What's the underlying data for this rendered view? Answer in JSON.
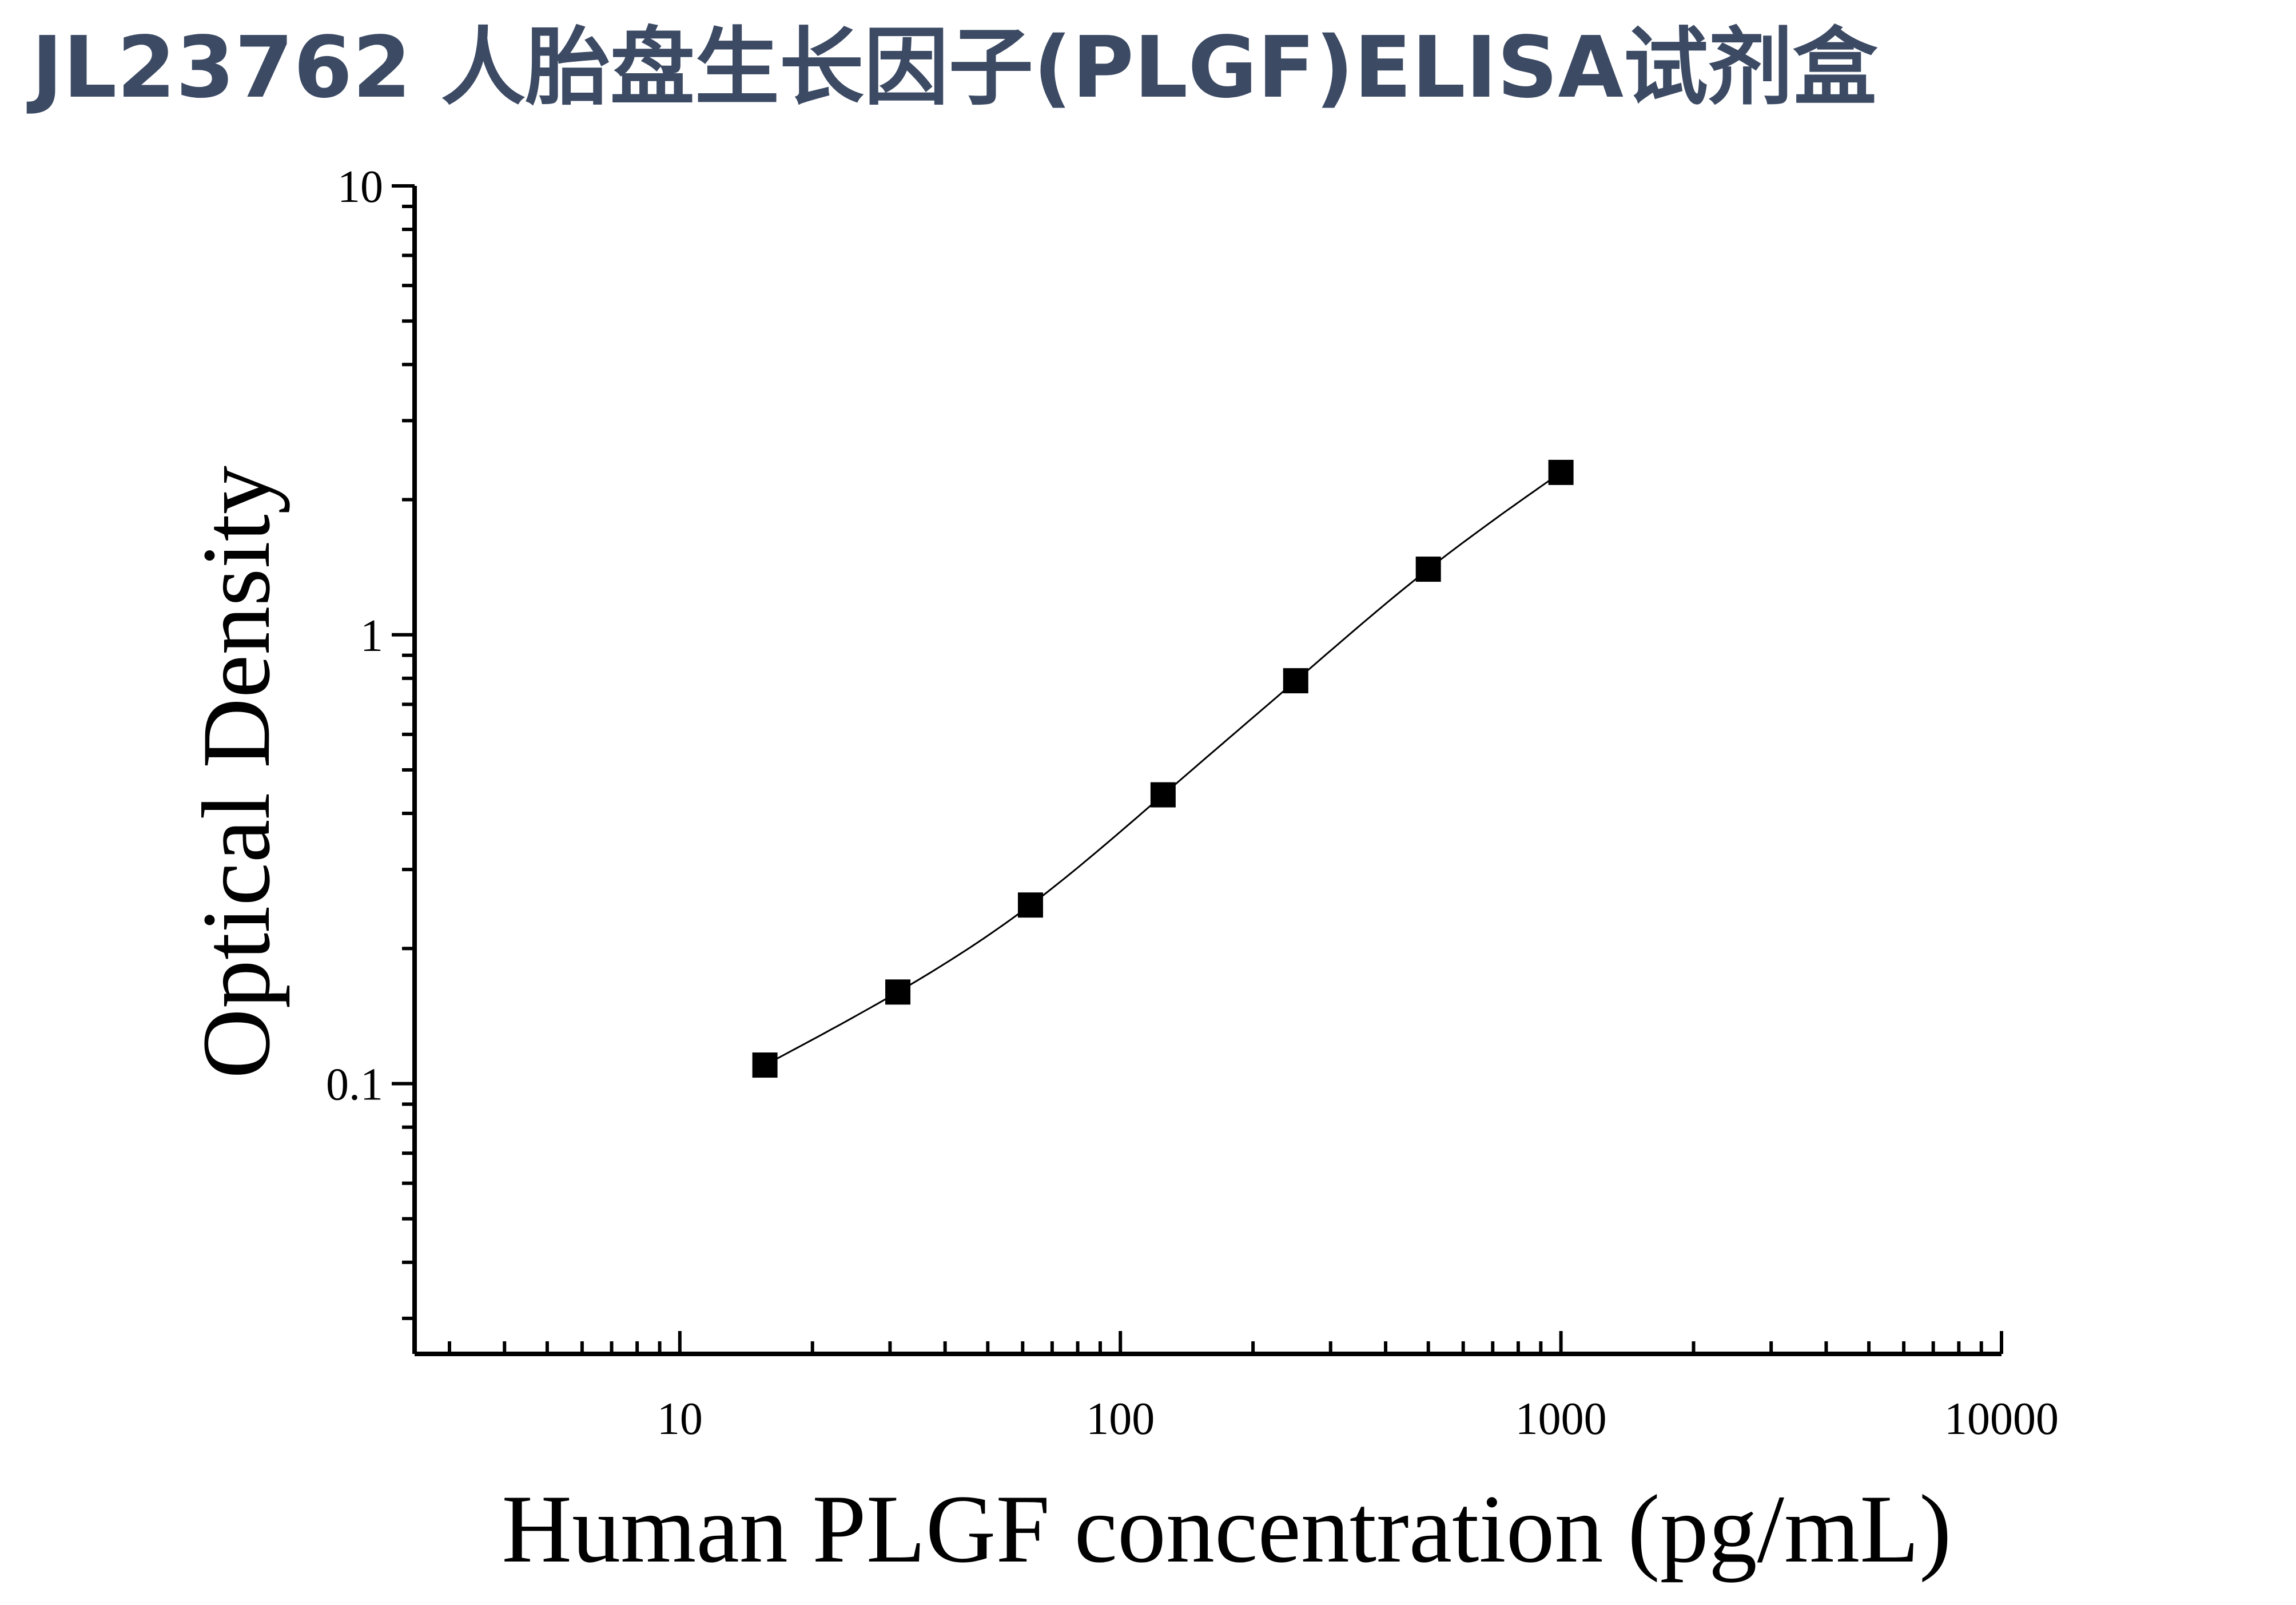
{
  "chart_data": {
    "type": "scatter",
    "title": "JL23762 人胎盘生长因子(PLGF)ELISA试剂盒",
    "xlabel": "Human PLGF concentration (pg/mL)",
    "ylabel": "Optical Density",
    "xscale": "log",
    "yscale": "log",
    "xlim": [
      2.5,
      10000
    ],
    "ylim": [
      0.025,
      10
    ],
    "xticks": [
      "10",
      "100",
      "1000",
      "10000"
    ],
    "yticks": [
      "0.1",
      "1",
      "10"
    ],
    "grid": false,
    "legend": "none",
    "series": [
      {
        "x": [
          15.6,
          31.25,
          62.5,
          125,
          250,
          500,
          1000
        ],
        "y": [
          0.11,
          0.16,
          0.25,
          0.44,
          0.79,
          1.4,
          2.3
        ]
      }
    ],
    "curve_fit": true,
    "colors": {
      "marker": "#000000",
      "curve": "#000000",
      "title": "#3c4a64"
    }
  }
}
